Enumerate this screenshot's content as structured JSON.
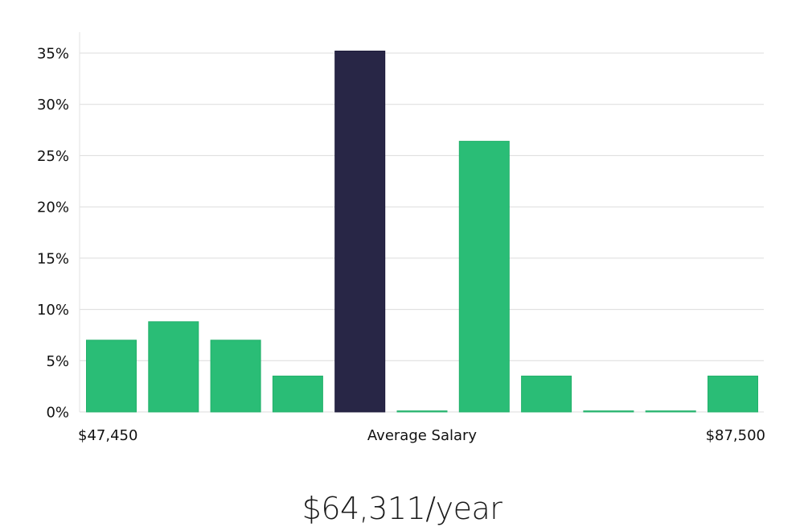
{
  "chart_data": {
    "type": "bar",
    "title": "",
    "xlabel": "Average Salary",
    "ylabel": "",
    "ylim": [
      0,
      35
    ],
    "yticks": [
      0,
      5,
      10,
      15,
      20,
      25,
      30,
      35
    ],
    "ytick_labels": [
      "0%",
      "5%",
      "10%",
      "15%",
      "20%",
      "25%",
      "30%",
      "35%"
    ],
    "x_min_label": "$47,450",
    "x_max_label": "$87,500",
    "values": [
      7.0,
      8.8,
      7.0,
      3.5,
      35.2,
      0.1,
      26.4,
      3.5,
      0.1,
      0.1,
      3.5
    ],
    "highlight_index": 4,
    "colors": {
      "bar": "#2abd76",
      "bar_stroke": "#22b06a",
      "highlight": "#282646",
      "highlight_stroke": "#1c1a3a"
    }
  },
  "summary": {
    "salary_text": "$64,311/year"
  }
}
